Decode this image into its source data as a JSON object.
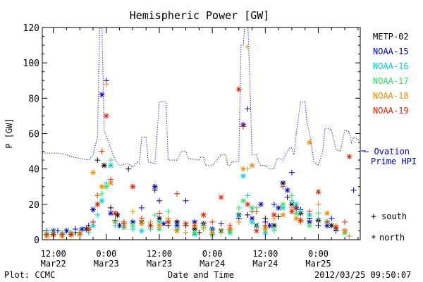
{
  "chart_data": {
    "type": "scatter",
    "title": "Hemispheric Power [GW]",
    "ylabel": "P [GW]",
    "xlabel": "Date and Time",
    "x_unit": "hours from 2012-03-22 00:00 UT",
    "xlim": [
      9.5,
      81.5
    ],
    "ylim": [
      0,
      120
    ],
    "yticks": [
      0,
      20,
      40,
      60,
      80,
      100,
      120
    ],
    "xticks": [
      {
        "x": 12,
        "top": "12:00",
        "bottom": "Mar22"
      },
      {
        "x": 24,
        "top": "0:00",
        "bottom": "Mar23"
      },
      {
        "x": 36,
        "top": "12:00",
        "bottom": "Mar23"
      },
      {
        "x": 48,
        "top": "0:00",
        "bottom": "Mar24"
      },
      {
        "x": 60,
        "top": "12:00",
        "bottom": "Mar24"
      },
      {
        "x": 72,
        "top": "0:00",
        "bottom": "Mar25"
      }
    ],
    "series": [
      {
        "name": "METP-02",
        "color": "#000000",
        "values": [
          [
            10.5,
            3
          ],
          [
            12,
            4
          ],
          [
            14,
            3
          ],
          [
            17,
            4
          ],
          [
            19.5,
            6
          ],
          [
            22,
            45
          ],
          [
            23.5,
            42
          ],
          [
            25,
            18
          ],
          [
            26.5,
            14
          ],
          [
            29,
            40
          ],
          [
            32,
            10
          ],
          [
            35,
            28
          ],
          [
            36,
            12
          ],
          [
            38,
            8
          ],
          [
            40,
            10
          ],
          [
            42,
            8
          ],
          [
            44,
            6
          ],
          [
            45,
            4
          ],
          [
            46,
            9
          ],
          [
            48,
            3
          ],
          [
            50,
            5
          ],
          [
            52,
            6
          ],
          [
            54,
            14
          ],
          [
            56,
            14
          ],
          [
            58,
            8
          ],
          [
            60,
            12
          ],
          [
            62,
            8
          ],
          [
            63,
            13
          ],
          [
            64,
            32
          ],
          [
            65,
            24
          ],
          [
            66,
            20
          ],
          [
            67,
            18
          ],
          [
            68,
            15
          ],
          [
            70,
            12
          ],
          [
            72,
            11
          ],
          [
            74,
            10
          ],
          [
            75,
            8
          ],
          [
            76,
            5
          ],
          [
            78,
            5
          ]
        ]
      },
      {
        "name": "NOAA-15",
        "color": "#0000bb",
        "values": [
          [
            10.5,
            5
          ],
          [
            12,
            5
          ],
          [
            13,
            5
          ],
          [
            15,
            5
          ],
          [
            17,
            6
          ],
          [
            18.5,
            6
          ],
          [
            20,
            8
          ],
          [
            21,
            17
          ],
          [
            22,
            25
          ],
          [
            23,
            82
          ],
          [
            24,
            90
          ],
          [
            25,
            15
          ],
          [
            26,
            11
          ],
          [
            27,
            8
          ],
          [
            28,
            9
          ],
          [
            30,
            10
          ],
          [
            32,
            18
          ],
          [
            35,
            30
          ],
          [
            36,
            22
          ],
          [
            37,
            9
          ],
          [
            38,
            12
          ],
          [
            40,
            8
          ],
          [
            42,
            22
          ],
          [
            44,
            10
          ],
          [
            46,
            8
          ],
          [
            48,
            6
          ],
          [
            50,
            9
          ],
          [
            52,
            6
          ],
          [
            54,
            12
          ],
          [
            55,
            65
          ],
          [
            56,
            74
          ],
          [
            57,
            12
          ],
          [
            58,
            16
          ],
          [
            59,
            20
          ],
          [
            60,
            10
          ],
          [
            61,
            8
          ],
          [
            62,
            20
          ],
          [
            63,
            18
          ],
          [
            64,
            32
          ],
          [
            65,
            28
          ],
          [
            66,
            38
          ],
          [
            67,
            18
          ],
          [
            68,
            17
          ],
          [
            70,
            10
          ],
          [
            72,
            8
          ],
          [
            74,
            8
          ],
          [
            75,
            12
          ],
          [
            76,
            6
          ],
          [
            80,
            28
          ]
        ]
      },
      {
        "name": "NOAA-16",
        "color": "#00cccc",
        "values": [
          [
            10.5,
            3
          ],
          [
            12,
            3
          ],
          [
            14,
            3
          ],
          [
            16,
            3
          ],
          [
            18,
            3
          ],
          [
            20,
            4
          ],
          [
            21,
            8
          ],
          [
            22,
            14
          ],
          [
            23,
            22
          ],
          [
            24,
            32
          ],
          [
            25,
            42
          ],
          [
            26,
            8
          ],
          [
            28,
            7
          ],
          [
            30,
            6
          ],
          [
            32,
            5
          ],
          [
            34,
            6
          ],
          [
            36,
            10
          ],
          [
            38,
            10
          ],
          [
            40,
            6
          ],
          [
            42,
            4
          ],
          [
            44,
            3
          ],
          [
            46,
            8
          ],
          [
            48,
            5
          ],
          [
            50,
            5
          ],
          [
            52,
            4
          ],
          [
            54,
            14
          ],
          [
            55,
            36
          ],
          [
            56,
            25
          ],
          [
            57,
            10
          ],
          [
            58,
            8
          ],
          [
            60,
            4
          ],
          [
            62,
            6
          ],
          [
            64,
            18
          ],
          [
            66,
            22
          ],
          [
            67,
            20
          ],
          [
            68,
            16
          ],
          [
            70,
            14
          ],
          [
            72,
            12
          ],
          [
            74,
            10
          ],
          [
            76,
            6
          ],
          [
            78,
            4
          ]
        ]
      },
      {
        "name": "NOAA-17",
        "color": "#33dd66",
        "values": [
          [
            10.5,
            4
          ],
          [
            12,
            4
          ],
          [
            14,
            4
          ],
          [
            16,
            4
          ],
          [
            18,
            5
          ],
          [
            20,
            6
          ],
          [
            21,
            10
          ],
          [
            22,
            20
          ],
          [
            23,
            26
          ],
          [
            24,
            30
          ],
          [
            25,
            45
          ],
          [
            26,
            10
          ],
          [
            28,
            8
          ],
          [
            30,
            8
          ],
          [
            32,
            10
          ],
          [
            34,
            8
          ],
          [
            35,
            14
          ],
          [
            36,
            6
          ],
          [
            38,
            16
          ],
          [
            40,
            5
          ],
          [
            42,
            4
          ],
          [
            44,
            4
          ],
          [
            46,
            6
          ],
          [
            48,
            3
          ],
          [
            50,
            4
          ],
          [
            52,
            5
          ],
          [
            54,
            18
          ],
          [
            55,
            22
          ],
          [
            56,
            40
          ],
          [
            57,
            18
          ],
          [
            58,
            18
          ],
          [
            60,
            7
          ],
          [
            62,
            5
          ],
          [
            64,
            20
          ],
          [
            66,
            25
          ],
          [
            67,
            15
          ],
          [
            68,
            10
          ],
          [
            70,
            8
          ],
          [
            72,
            15
          ],
          [
            74,
            10
          ],
          [
            76,
            7
          ],
          [
            78,
            4
          ]
        ]
      },
      {
        "name": "NOAA-18",
        "color": "#ee8800",
        "values": [
          [
            10.5,
            2
          ],
          [
            12,
            2
          ],
          [
            14,
            2
          ],
          [
            16,
            2
          ],
          [
            18,
            3
          ],
          [
            20,
            6
          ],
          [
            21,
            38
          ],
          [
            22,
            25
          ],
          [
            23,
            30
          ],
          [
            24,
            88
          ],
          [
            25,
            32
          ],
          [
            26,
            10
          ],
          [
            28,
            8
          ],
          [
            30,
            16
          ],
          [
            32,
            9
          ],
          [
            34,
            10
          ],
          [
            36,
            8
          ],
          [
            38,
            12
          ],
          [
            40,
            5
          ],
          [
            42,
            4
          ],
          [
            44,
            8
          ],
          [
            46,
            7
          ],
          [
            48,
            4
          ],
          [
            50,
            5
          ],
          [
            52,
            6
          ],
          [
            54,
            10
          ],
          [
            55,
            40
          ],
          [
            56,
            109
          ],
          [
            57,
            42
          ],
          [
            58,
            16
          ],
          [
            60,
            6
          ],
          [
            62,
            12
          ],
          [
            64,
            14
          ],
          [
            66,
            18
          ],
          [
            67,
            12
          ],
          [
            68,
            10
          ],
          [
            70,
            55
          ],
          [
            72,
            20
          ],
          [
            74,
            15
          ],
          [
            76,
            8
          ],
          [
            78,
            5
          ],
          [
            79,
            2
          ]
        ]
      },
      {
        "name": "NOAA-19",
        "color": "#dd2200",
        "values": [
          [
            10.5,
            3
          ],
          [
            12,
            3
          ],
          [
            14,
            3
          ],
          [
            16,
            3
          ],
          [
            18,
            4
          ],
          [
            20,
            6
          ],
          [
            21,
            10
          ],
          [
            22,
            20
          ],
          [
            23,
            50
          ],
          [
            24,
            70
          ],
          [
            25,
            34
          ],
          [
            26,
            15
          ],
          [
            28,
            10
          ],
          [
            30,
            30
          ],
          [
            32,
            12
          ],
          [
            34,
            8
          ],
          [
            36,
            15
          ],
          [
            38,
            10
          ],
          [
            40,
            26
          ],
          [
            42,
            9
          ],
          [
            44,
            8
          ],
          [
            46,
            14
          ],
          [
            48,
            10
          ],
          [
            50,
            24
          ],
          [
            52,
            8
          ],
          [
            54,
            85
          ],
          [
            55,
            64
          ],
          [
            56,
            20
          ],
          [
            57,
            16
          ],
          [
            58,
            5
          ],
          [
            60,
            8
          ],
          [
            62,
            14
          ],
          [
            64,
            30
          ],
          [
            66,
            16
          ],
          [
            67,
            18
          ],
          [
            68,
            11
          ],
          [
            70,
            16
          ],
          [
            72,
            27
          ],
          [
            74,
            10
          ],
          [
            76,
            7
          ],
          [
            78,
            10
          ],
          [
            79,
            47
          ]
        ]
      }
    ],
    "ovation": {
      "name": "Ovation Prime HPI",
      "color": "#0000bb",
      "label_line1": "— Ovation",
      "label_line2": "Prime HPI",
      "values": [
        [
          9.5,
          49
        ],
        [
          13,
          49
        ],
        [
          15,
          48
        ],
        [
          16,
          47
        ],
        [
          18,
          46
        ],
        [
          20,
          45
        ],
        [
          21,
          48
        ],
        [
          22,
          58
        ],
        [
          22.5,
          120
        ],
        [
          23,
          120
        ],
        [
          23.5,
          62
        ],
        [
          24.5,
          55
        ],
        [
          26,
          45
        ],
        [
          27,
          42
        ],
        [
          29,
          43
        ],
        [
          30,
          41
        ],
        [
          31,
          44
        ],
        [
          31.5,
          43
        ],
        [
          32,
          58
        ],
        [
          33,
          58
        ],
        [
          33.5,
          44
        ],
        [
          35,
          43
        ],
        [
          36,
          78
        ],
        [
          37.5,
          78
        ],
        [
          38,
          45
        ],
        [
          40,
          45
        ],
        [
          41,
          50
        ],
        [
          42,
          50
        ],
        [
          42.5,
          46
        ],
        [
          45,
          45
        ],
        [
          45.5,
          47
        ],
        [
          46,
          47
        ],
        [
          46.5,
          42
        ],
        [
          48,
          42
        ],
        [
          50,
          48
        ],
        [
          51,
          48
        ],
        [
          51.5,
          42
        ],
        [
          52,
          42
        ],
        [
          52.5,
          44
        ],
        [
          54,
          44
        ],
        [
          54.5,
          110
        ],
        [
          55,
          110
        ],
        [
          55.5,
          125
        ],
        [
          56,
          125
        ],
        [
          56.5,
          90
        ],
        [
          57,
          48
        ],
        [
          58,
          48
        ],
        [
          58.5,
          44
        ],
        [
          59,
          42
        ],
        [
          60,
          42
        ],
        [
          61,
          40
        ],
        [
          62,
          40
        ],
        [
          62.5,
          45
        ],
        [
          63,
          46
        ],
        [
          64,
          45
        ],
        [
          65,
          50
        ],
        [
          65.5,
          52
        ],
        [
          66,
          52
        ],
        [
          66.5,
          48
        ],
        [
          67,
          60
        ],
        [
          68,
          78
        ],
        [
          69,
          78
        ],
        [
          69.5,
          65
        ],
        [
          70,
          61
        ],
        [
          71,
          44
        ],
        [
          72,
          42
        ],
        [
          73,
          50
        ],
        [
          73.5,
          63
        ],
        [
          74,
          63
        ],
        [
          75,
          62
        ],
        [
          76,
          51
        ],
        [
          77,
          50
        ],
        [
          78,
          62
        ],
        [
          79,
          61
        ],
        [
          79.5,
          55
        ],
        [
          80,
          58
        ],
        [
          81.5,
          56
        ]
      ]
    },
    "legend_marker_labels": {
      "south_symbol": "+",
      "south": "south",
      "north_symbol": "*",
      "north": "north"
    },
    "legend_placement": "right",
    "footer_left": "Plot: CCMC",
    "footer_right": "2012/03/25 09:50:07"
  }
}
